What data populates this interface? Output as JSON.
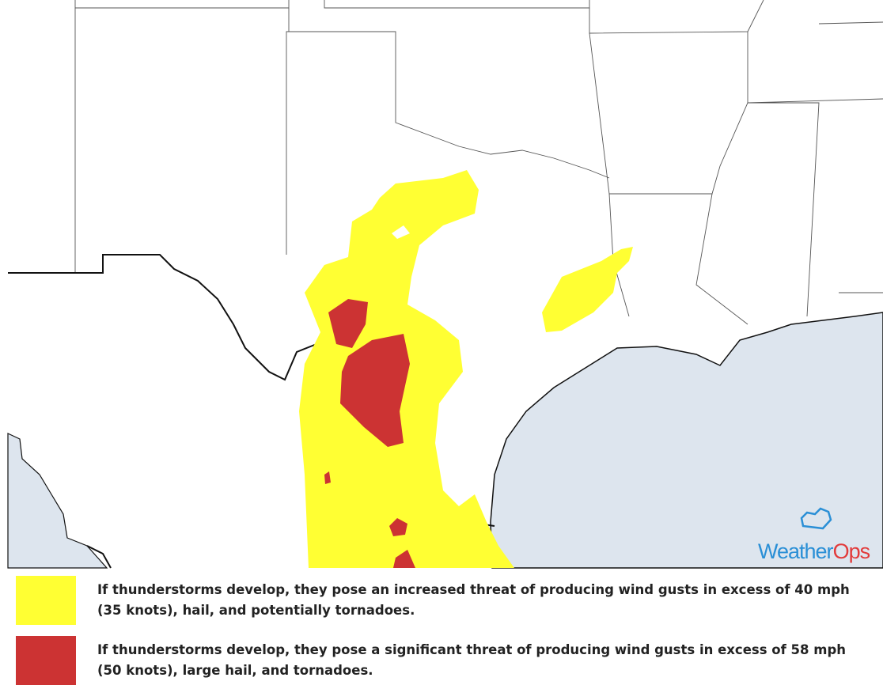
{
  "legend": {
    "items": [
      {
        "text": "If thunderstorms develop, they pose an increased threat of producing wind gusts in excess of 40 mph (35 knots), hail, and potentially tornadoes."
      },
      {
        "text": "If thunderstorms develop, they pose a significant threat of producing wind gusts in excess of 58 mph (50 knots), large hail, and tornadoes."
      }
    ]
  },
  "logo": {
    "name_part1": "Weather",
    "name_part2": "Ops"
  }
}
